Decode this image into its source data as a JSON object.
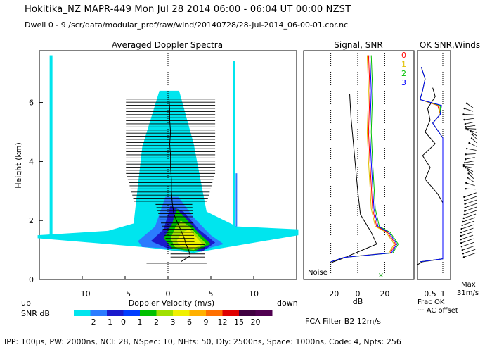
{
  "header": {
    "line1": "Hokitika_NZ   MAPR-449  Mon Jul 28 2014 06:00 - 06:04 UT 00:00 NZST",
    "line2": "Dwell  0 - 9   /scr/data/modular_prof/raw/wind/20140728/28-Jul-2014_06-00-01.cor.nc"
  },
  "footer": "IPP: 100µs,  PW: 2000ns,  NCI: 28,  NSpec: 10,  NHts: 50,  Dly: 2500ns,  Space: 1000ns,  Code: 4,  Npts: 256",
  "colors": {
    "snr_scale": [
      "#00e5ee",
      "#2b7cff",
      "#1a1acc",
      "#003dff",
      "#00c000",
      "#a0e000",
      "#f0f000",
      "#ffb000",
      "#ff7000",
      "#e00000",
      "#400040",
      "#500050"
    ],
    "beam": [
      "#ff0000",
      "#e0c000",
      "#00c000",
      "#0000ff"
    ]
  },
  "chart_data": [
    {
      "type": "heatmap",
      "title": "Averaged Doppler Spectra",
      "xlabel": "Doppler Velocity (m/s)",
      "ylabel": "Height (km)",
      "xlim": [
        -15,
        15
      ],
      "ylim": [
        0,
        7.8
      ],
      "xticks": [
        "-10",
        "-5",
        "0",
        "5",
        "10"
      ],
      "yticks": [
        "0",
        "2",
        "4",
        "6"
      ],
      "x_extra_left": "up",
      "x_extra_right": "down",
      "colorbar": {
        "label": "SNR dB",
        "tick_labels": [
          "-2",
          "-1",
          "0",
          "1",
          "2",
          "3",
          "6",
          "9",
          "12",
          "15",
          "20"
        ]
      },
      "mean_velocity_profile": {
        "height_km": [
          0.6,
          0.8,
          1.0,
          1.2,
          1.4,
          1.6,
          1.8,
          2.0,
          2.2,
          2.4,
          2.6,
          3.0,
          3.4,
          3.8,
          4.2,
          4.6,
          5.0,
          5.4,
          5.8,
          6.2
        ],
        "velocity_ms": [
          1.5,
          2.6,
          2.4,
          2.1,
          1.9,
          1.6,
          1.3,
          1.0,
          0.7,
          0.6,
          0.5,
          0.4,
          0.4,
          0.3,
          0.3,
          0.2,
          0.3,
          0.2,
          0.2,
          0.1
        ]
      }
    },
    {
      "type": "line",
      "title": "Signal, SNR",
      "xlabel": "dB",
      "xticks": [
        "-20",
        "0",
        "20"
      ],
      "ylim": [
        0,
        7.8
      ],
      "annotation": "Noise",
      "legend": [
        "0",
        "1",
        "2",
        "3"
      ]
    },
    {
      "type": "line",
      "title": "OK SNR,Winds",
      "xlabel": "Frac OK",
      "xticks": [
        "0.5",
        "1"
      ],
      "legend_extra": "··· AC offset",
      "ylim": [
        0,
        7.8
      ]
    },
    {
      "type": "scatter",
      "title": "Winds",
      "max_label": "Max",
      "max_value": "31m/s"
    }
  ],
  "filter_label": "FCA Filter B2 12m/s"
}
